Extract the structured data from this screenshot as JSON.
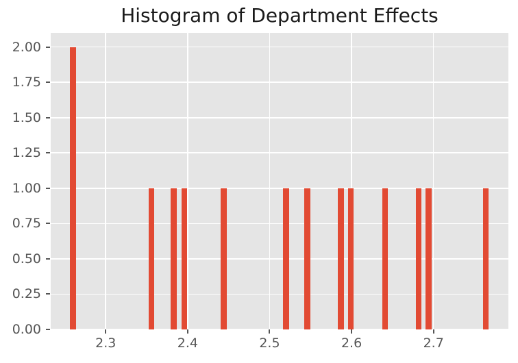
{
  "chart_data": {
    "type": "bar",
    "subtype": "histogram",
    "title": "Histogram of Department Effects",
    "xlabel": "",
    "ylabel": "",
    "bars": [
      {
        "x": 2.26,
        "count": 2
      },
      {
        "x": 2.356,
        "count": 1
      },
      {
        "x": 2.383,
        "count": 1
      },
      {
        "x": 2.396,
        "count": 1
      },
      {
        "x": 2.444,
        "count": 1
      },
      {
        "x": 2.52,
        "count": 1
      },
      {
        "x": 2.546,
        "count": 1
      },
      {
        "x": 2.587,
        "count": 1
      },
      {
        "x": 2.599,
        "count": 1
      },
      {
        "x": 2.641,
        "count": 1
      },
      {
        "x": 2.682,
        "count": 1
      },
      {
        "x": 2.694,
        "count": 1
      },
      {
        "x": 2.764,
        "count": 1
      }
    ],
    "bin_width": 0.0071,
    "x_ticks": {
      "values": [
        2.3,
        2.4,
        2.5,
        2.6,
        2.7
      ],
      "labels": [
        "2.3",
        "2.4",
        "2.5",
        "2.6",
        "2.7"
      ]
    },
    "y_ticks": {
      "values": [
        0.0,
        0.25,
        0.5,
        0.75,
        1.0,
        1.25,
        1.5,
        1.75,
        2.0
      ],
      "labels": [
        "0.00",
        "0.25",
        "0.50",
        "0.75",
        "1.00",
        "1.25",
        "1.50",
        "1.75",
        "2.00"
      ]
    },
    "xlim": [
      2.2329,
      2.7914
    ],
    "ylim": [
      0,
      2.1
    ],
    "grid": true,
    "legend_position": "none",
    "style": "ggplot",
    "colors": {
      "bar": "#e24a33",
      "plot_background": "#e5e5e5",
      "figure_background": "#ffffff",
      "gridline": "#ffffff",
      "tick_label": "#555555",
      "tick_mark": "#555555",
      "title_text": "#1a1a1a"
    }
  }
}
